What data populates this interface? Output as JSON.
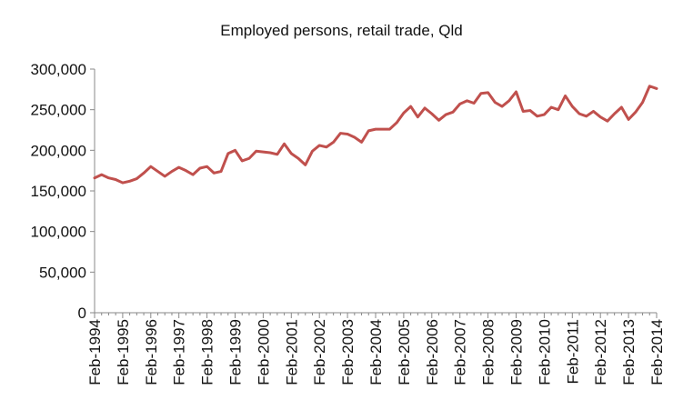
{
  "chart_data": {
    "type": "line",
    "title": "Employed persons, retail trade, Qld",
    "xlabel": "",
    "ylabel": "",
    "ylim": [
      0,
      300000
    ],
    "yticks": [
      0,
      50000,
      100000,
      150000,
      200000,
      250000,
      300000
    ],
    "ytick_labels": [
      "0",
      "50,000",
      "100,000",
      "150,000",
      "200,000",
      "250,000",
      "300,000"
    ],
    "xtick_labels": [
      "Feb-1994",
      "Feb-1995",
      "Feb-1996",
      "Feb-1997",
      "Feb-1998",
      "Feb-1999",
      "Feb-2000",
      "Feb-2001",
      "Feb-2002",
      "Feb-2003",
      "Feb-2004",
      "Feb-2005",
      "Feb-2006",
      "Feb-2007",
      "Feb-2008",
      "Feb-2009",
      "Feb-2010",
      "Feb-2011",
      "Feb-2012",
      "Feb-2013",
      "Feb-2014"
    ],
    "grid": false,
    "legend": "none",
    "line_color": "#c0504d",
    "x": [
      "Feb-1994",
      "May-1994",
      "Aug-1994",
      "Nov-1994",
      "Feb-1995",
      "May-1995",
      "Aug-1995",
      "Nov-1995",
      "Feb-1996",
      "May-1996",
      "Aug-1996",
      "Nov-1996",
      "Feb-1997",
      "May-1997",
      "Aug-1997",
      "Nov-1997",
      "Feb-1998",
      "May-1998",
      "Aug-1998",
      "Nov-1998",
      "Feb-1999",
      "May-1999",
      "Aug-1999",
      "Nov-1999",
      "Feb-2000",
      "May-2000",
      "Aug-2000",
      "Nov-2000",
      "Feb-2001",
      "May-2001",
      "Aug-2001",
      "Nov-2001",
      "Feb-2002",
      "May-2002",
      "Aug-2002",
      "Nov-2002",
      "Feb-2003",
      "May-2003",
      "Aug-2003",
      "Nov-2003",
      "Feb-2004",
      "May-2004",
      "Aug-2004",
      "Nov-2004",
      "Feb-2005",
      "May-2005",
      "Aug-2005",
      "Nov-2005",
      "Feb-2006",
      "May-2006",
      "Aug-2006",
      "Nov-2006",
      "Feb-2007",
      "May-2007",
      "Aug-2007",
      "Nov-2007",
      "Feb-2008",
      "May-2008",
      "Aug-2008",
      "Nov-2008",
      "Feb-2009",
      "May-2009",
      "Aug-2009",
      "Nov-2009",
      "Feb-2010",
      "May-2010",
      "Aug-2010",
      "Nov-2010",
      "Feb-2011",
      "May-2011",
      "Aug-2011",
      "Nov-2011",
      "Feb-2012",
      "May-2012",
      "Aug-2012",
      "Nov-2012",
      "Feb-2013",
      "May-2013",
      "Aug-2013",
      "Nov-2013",
      "Feb-2014"
    ],
    "series": [
      {
        "values": [
          166000,
          170000,
          166000,
          164000,
          160000,
          162000,
          165000,
          172000,
          180000,
          174000,
          168000,
          174000,
          179000,
          175000,
          170000,
          178000,
          180000,
          172000,
          174000,
          196000,
          200000,
          187000,
          190000,
          199000,
          198000,
          197000,
          195000,
          208000,
          196000,
          190000,
          182000,
          199000,
          206000,
          204000,
          210000,
          221000,
          220000,
          216000,
          210000,
          224000,
          226000,
          226000,
          226000,
          234000,
          246000,
          254000,
          241000,
          252000,
          245000,
          237000,
          244000,
          247000,
          257000,
          261000,
          258000,
          270000,
          271000,
          259000,
          254000,
          261000,
          272000,
          248000,
          249000,
          242000,
          244000,
          253000,
          250000,
          267000,
          254000,
          245000,
          242000,
          248000,
          241000,
          236000,
          245000,
          253000,
          238000,
          247000,
          259000,
          279000,
          276000
        ]
      }
    ]
  }
}
